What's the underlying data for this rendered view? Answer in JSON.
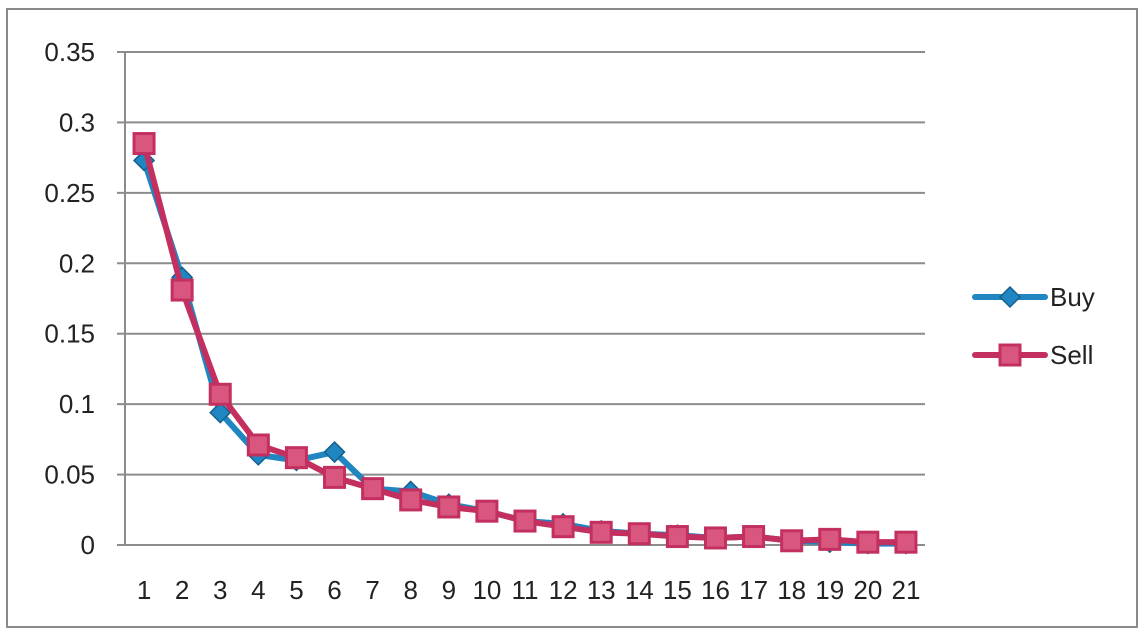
{
  "chart_data": {
    "type": "line",
    "title": "",
    "xlabel": "",
    "ylabel": "",
    "categories": [
      "1",
      "2",
      "3",
      "4",
      "5",
      "6",
      "7",
      "8",
      "9",
      "10",
      "11",
      "12",
      "13",
      "14",
      "15",
      "16",
      "17",
      "18",
      "19",
      "20",
      "21"
    ],
    "ylim": [
      0,
      0.35
    ],
    "yticks": [
      "0",
      "0.05",
      "0.1",
      "0.15",
      "0.2",
      "0.25",
      "0.3",
      "0.35"
    ],
    "grid": true,
    "legend_position": "right",
    "series": [
      {
        "name": "Buy",
        "color": "#1f86c2",
        "marker": "diamond",
        "values": [
          0.273,
          0.19,
          0.094,
          0.064,
          0.06,
          0.066,
          0.04,
          0.038,
          0.029,
          0.024,
          0.017,
          0.015,
          0.01,
          0.008,
          0.007,
          0.005,
          0.006,
          0.003,
          0.002,
          0.001,
          0.001
        ]
      },
      {
        "name": "Sell",
        "color": "#c33060",
        "marker": "square",
        "values": [
          0.285,
          0.181,
          0.107,
          0.071,
          0.062,
          0.048,
          0.04,
          0.032,
          0.027,
          0.024,
          0.017,
          0.013,
          0.009,
          0.008,
          0.006,
          0.005,
          0.006,
          0.003,
          0.004,
          0.002,
          0.002
        ]
      }
    ]
  }
}
